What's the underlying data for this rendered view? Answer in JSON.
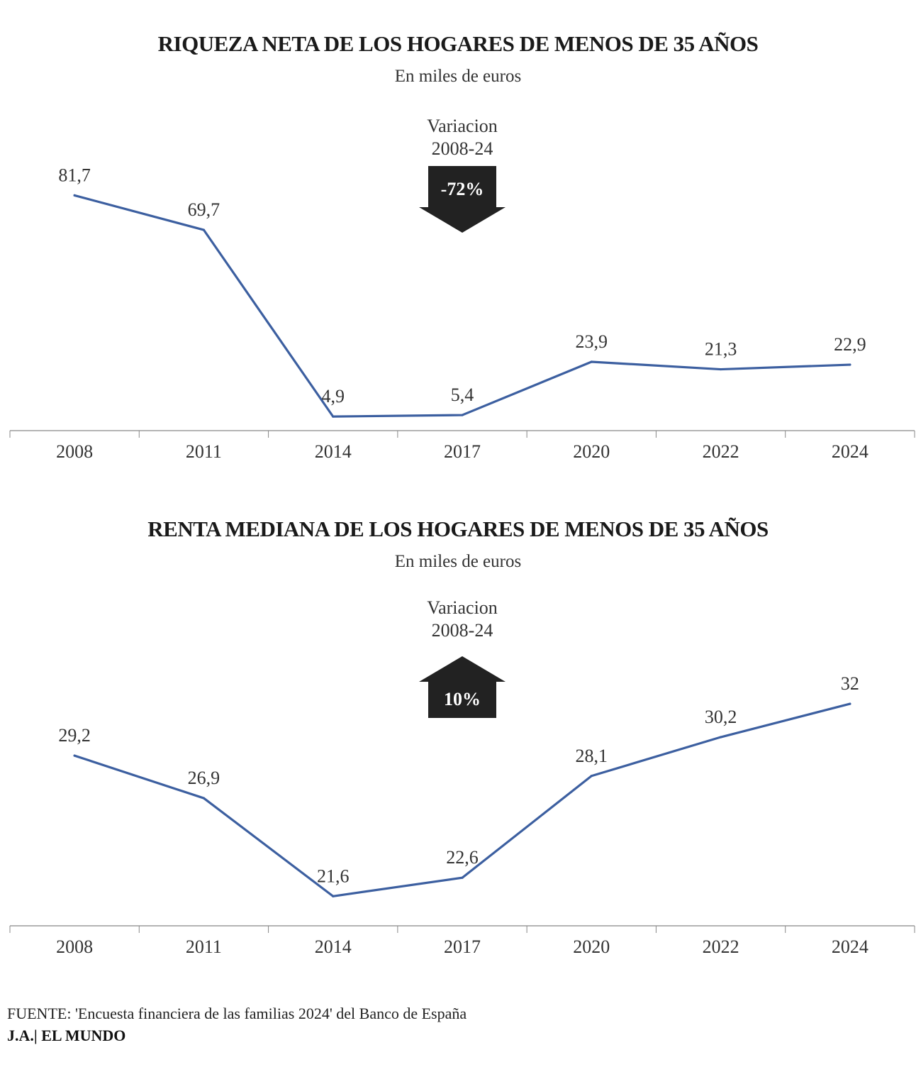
{
  "chart_data": [
    {
      "type": "line",
      "title": "RIQUEZA NETA DE LOS HOGARES DE MENOS DE 35 AÑOS",
      "subtitle": "En miles de euros",
      "categories": [
        "2008",
        "2011",
        "2014",
        "2017",
        "2020",
        "2022",
        "2024"
      ],
      "values": [
        81.7,
        69.7,
        4.9,
        5.4,
        23.9,
        21.3,
        22.9
      ],
      "value_labels": [
        "81,7",
        "69,7",
        "4,9",
        "5,4",
        "23,9",
        "21,3",
        "22,9"
      ],
      "xlabel": "",
      "ylabel": "",
      "ylim": [
        0,
        85
      ],
      "grid": false,
      "line_color": "#3c5fa0",
      "annotation": {
        "line1": "Variacion",
        "line2": "2008-24",
        "value": "-72%",
        "direction": "down",
        "color": "#222222"
      }
    },
    {
      "type": "line",
      "title": "RENTA MEDIANA DE LOS HOGARES DE MENOS DE 35 AÑOS",
      "subtitle": "En miles de euros",
      "categories": [
        "2008",
        "2011",
        "2014",
        "2017",
        "2020",
        "2022",
        "2024"
      ],
      "values": [
        29.2,
        26.9,
        21.6,
        22.6,
        28.1,
        30.2,
        32
      ],
      "value_labels": [
        "29,2",
        "26,9",
        "21,6",
        "22,6",
        "28,1",
        "30,2",
        "32"
      ],
      "xlabel": "",
      "ylabel": "",
      "ylim": [
        20,
        33
      ],
      "grid": false,
      "line_color": "#3c5fa0",
      "annotation": {
        "line1": "Variacion",
        "line2": "2008-24",
        "value": "10%",
        "direction": "up",
        "color": "#222222"
      }
    }
  ],
  "footer": {
    "source": "FUENTE: 'Encuesta financiera de las familias 2024' del Banco de España",
    "credit": "J.A.| EL MUNDO"
  }
}
